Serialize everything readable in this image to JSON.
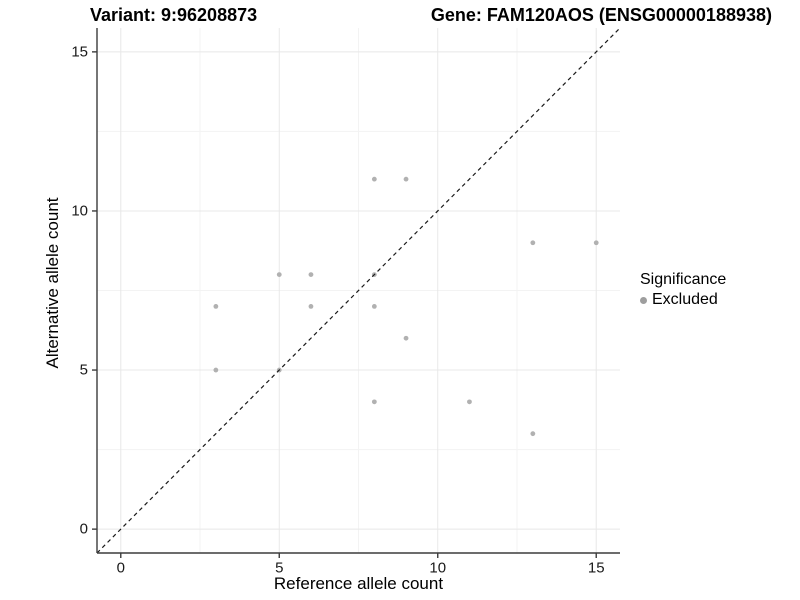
{
  "header": {
    "variant_title": "Variant: 9:96208873",
    "gene_title": "Gene: FAM120AOS (ENSG00000188938)"
  },
  "chart_data": {
    "type": "scatter",
    "titles": {
      "left": "Variant: 9:96208873",
      "right": "Gene: FAM120AOS (ENSG00000188938)"
    },
    "xlabel": "Reference allele count",
    "ylabel": "Alternative allele count",
    "xlim": [
      -0.75,
      15.75
    ],
    "ylim": [
      -0.75,
      15.75
    ],
    "xticks": [
      0,
      5,
      10,
      15
    ],
    "yticks": [
      0,
      5,
      10,
      15
    ],
    "xtick_labels": [
      "0",
      "5",
      "10",
      "15"
    ],
    "ytick_labels": [
      "0",
      "5",
      "10",
      "15"
    ],
    "grid": {
      "major": [
        0,
        5,
        10,
        15
      ],
      "minor": [
        2.5,
        7.5,
        12.5
      ]
    },
    "points": [
      [
        3,
        5
      ],
      [
        3,
        7
      ],
      [
        5,
        5
      ],
      [
        5,
        8
      ],
      [
        6,
        7
      ],
      [
        6,
        8
      ],
      [
        8,
        4
      ],
      [
        8,
        7
      ],
      [
        8,
        8
      ],
      [
        8,
        11
      ],
      [
        9,
        6
      ],
      [
        9,
        11
      ],
      [
        11,
        4
      ],
      [
        13,
        3
      ],
      [
        13,
        9
      ],
      [
        15,
        9
      ]
    ],
    "identity_line": {
      "equation": "y = x",
      "style": "dashed"
    },
    "colors": {
      "point": "#b1b1b1",
      "legend_point": "#9e9e9e",
      "grid_major": "#e8e8e8",
      "grid_minor": "#f3f3f3",
      "axis": "#3c3c3c",
      "identity": "#1a1a1a"
    },
    "legend": {
      "title": "Significance",
      "position": "right",
      "items": [
        {
          "label": "Excluded",
          "marker": "dot"
        }
      ]
    }
  }
}
